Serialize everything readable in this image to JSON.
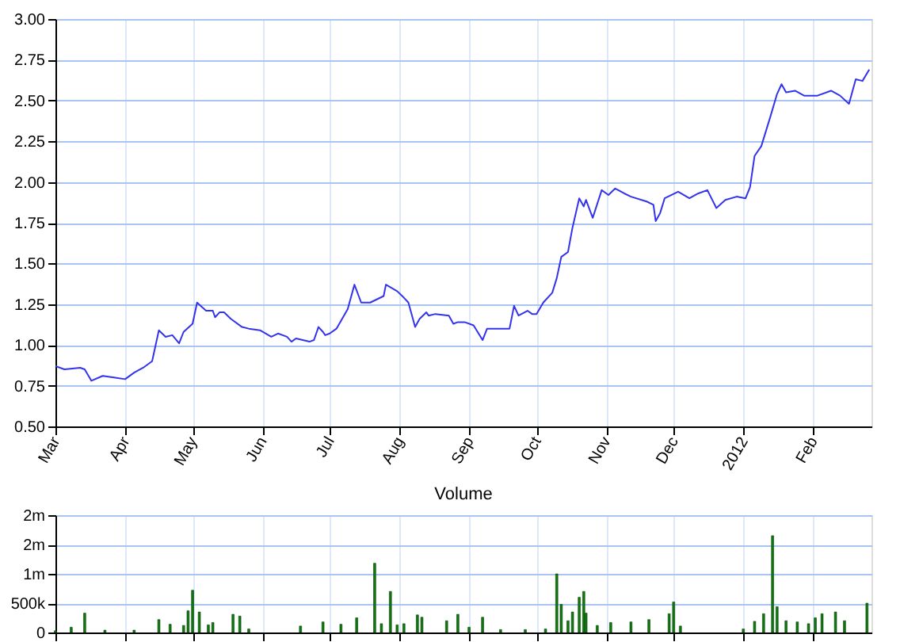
{
  "chart_data": [
    {
      "type": "line",
      "xlim": [
        "2011-03-01",
        "2012-02-27"
      ],
      "ylim": [
        0.5,
        3.0
      ],
      "yticks": [
        {
          "value": 0.5,
          "label": "0.50"
        },
        {
          "value": 0.75,
          "label": "0.75"
        },
        {
          "value": 1.0,
          "label": "1.00"
        },
        {
          "value": 1.25,
          "label": "1.25"
        },
        {
          "value": 1.5,
          "label": "1.50"
        },
        {
          "value": 1.75,
          "label": "1.75"
        },
        {
          "value": 2.0,
          "label": "2.00"
        },
        {
          "value": 2.25,
          "label": "2.25"
        },
        {
          "value": 2.5,
          "label": "2.50"
        },
        {
          "value": 2.75,
          "label": "2.75"
        },
        {
          "value": 3.0,
          "label": "3.00"
        }
      ],
      "xticks": [
        {
          "value": "2011-03-01",
          "label": "Mar"
        },
        {
          "value": "2011-04-01",
          "label": "Apr"
        },
        {
          "value": "2011-05-01",
          "label": "May"
        },
        {
          "value": "2011-06-01",
          "label": "Jun"
        },
        {
          "value": "2011-07-01",
          "label": "Jul"
        },
        {
          "value": "2011-08-01",
          "label": "Aug"
        },
        {
          "value": "2011-09-01",
          "label": "Sep"
        },
        {
          "value": "2011-10-01",
          "label": "Oct"
        },
        {
          "value": "2011-11-01",
          "label": "Nov"
        },
        {
          "value": "2011-12-01",
          "label": "Dec"
        },
        {
          "value": "2012-01-01",
          "label": "2012"
        },
        {
          "value": "2012-02-01",
          "label": "Feb"
        }
      ],
      "grid": true,
      "series": [
        {
          "color": "#3333ee",
          "x": [
            "2011-03-01",
            "2011-03-05",
            "2011-03-12",
            "2011-03-14",
            "2011-03-17",
            "2011-03-22",
            "2011-03-27",
            "2011-04-01",
            "2011-04-05",
            "2011-04-09",
            "2011-04-13",
            "2011-04-16",
            "2011-04-19",
            "2011-04-22",
            "2011-04-25",
            "2011-04-27",
            "2011-05-01",
            "2011-05-03",
            "2011-05-07",
            "2011-05-10",
            "2011-05-11",
            "2011-05-13",
            "2011-05-15",
            "2011-05-18",
            "2011-05-23",
            "2011-05-26",
            "2011-05-31",
            "2011-06-05",
            "2011-06-08",
            "2011-06-12",
            "2011-06-14",
            "2011-06-16",
            "2011-06-19",
            "2011-06-22",
            "2011-06-24",
            "2011-06-26",
            "2011-06-28",
            "2011-06-29",
            "2011-07-01",
            "2011-07-04",
            "2011-07-09",
            "2011-07-12",
            "2011-07-15",
            "2011-07-19",
            "2011-07-25",
            "2011-07-26",
            "2011-07-31",
            "2011-08-03",
            "2011-08-05",
            "2011-08-08",
            "2011-08-10",
            "2011-08-13",
            "2011-08-14",
            "2011-08-17",
            "2011-08-23",
            "2011-08-25",
            "2011-08-27",
            "2011-08-30",
            "2011-09-03",
            "2011-09-07",
            "2011-09-09",
            "2011-09-12",
            "2011-09-19",
            "2011-09-21",
            "2011-09-23",
            "2011-09-27",
            "2011-09-29",
            "2011-10-01",
            "2011-10-04",
            "2011-10-08",
            "2011-10-10",
            "2011-10-12",
            "2011-10-15",
            "2011-10-17",
            "2011-10-20",
            "2011-10-22",
            "2011-10-23",
            "2011-10-26",
            "2011-10-30",
            "2011-11-02",
            "2011-11-05",
            "2011-11-09",
            "2011-11-12",
            "2011-11-19",
            "2011-11-22",
            "2011-11-23",
            "2011-11-25",
            "2011-11-27",
            "2011-12-03",
            "2011-12-08",
            "2011-12-12",
            "2011-12-16",
            "2011-12-20",
            "2011-12-24",
            "2011-12-29",
            "2012-01-02",
            "2012-01-04",
            "2012-01-06",
            "2012-01-09",
            "2012-01-13",
            "2012-01-16",
            "2012-01-18",
            "2012-01-20",
            "2012-01-24",
            "2012-01-28",
            "2012-01-31",
            "2012-02-03",
            "2012-02-09",
            "2012-02-13",
            "2012-02-17",
            "2012-02-20",
            "2012-02-23",
            "2012-02-26"
          ],
          "values": [
            0.87,
            0.85,
            0.86,
            0.85,
            0.78,
            0.81,
            0.8,
            0.79,
            0.83,
            0.86,
            0.9,
            1.09,
            1.05,
            1.06,
            1.01,
            1.08,
            1.13,
            1.26,
            1.21,
            1.21,
            1.17,
            1.2,
            1.2,
            1.16,
            1.11,
            1.1,
            1.09,
            1.05,
            1.07,
            1.05,
            1.02,
            1.04,
            1.03,
            1.02,
            1.03,
            1.11,
            1.08,
            1.06,
            1.07,
            1.1,
            1.22,
            1.37,
            1.26,
            1.26,
            1.3,
            1.37,
            1.33,
            1.29,
            1.26,
            1.11,
            1.16,
            1.2,
            1.18,
            1.19,
            1.18,
            1.13,
            1.14,
            1.14,
            1.12,
            1.03,
            1.1,
            1.1,
            1.1,
            1.24,
            1.18,
            1.21,
            1.19,
            1.19,
            1.26,
            1.32,
            1.41,
            1.54,
            1.57,
            1.72,
            1.9,
            1.85,
            1.89,
            1.78,
            1.95,
            1.92,
            1.96,
            1.93,
            1.91,
            1.88,
            1.86,
            1.76,
            1.81,
            1.9,
            1.94,
            1.9,
            1.93,
            1.95,
            1.84,
            1.89,
            1.91,
            1.9,
            1.97,
            2.16,
            2.22,
            2.4,
            2.54,
            2.6,
            2.55,
            2.56,
            2.53,
            2.53,
            2.53,
            2.56,
            2.53,
            2.48,
            2.63,
            2.62,
            2.69
          ]
        }
      ]
    },
    {
      "type": "bar",
      "title": "Volume",
      "xlim": [
        "2011-03-01",
        "2012-02-27"
      ],
      "ylim": [
        0,
        2000000
      ],
      "yticks": [
        {
          "value": 0,
          "label": "0"
        },
        {
          "value": 500000,
          "label": "500k"
        },
        {
          "value": 1000000,
          "label": "1m"
        },
        {
          "value": 1500000,
          "label": "2m"
        },
        {
          "value": 2000000,
          "label": "2m"
        }
      ],
      "xticks": [
        {
          "value": "2011-03-01",
          "label": null
        },
        {
          "value": "2011-04-01",
          "label": null
        },
        {
          "value": "2011-05-01",
          "label": null
        },
        {
          "value": "2011-06-01",
          "label": null
        },
        {
          "value": "2011-07-01",
          "label": null
        },
        {
          "value": "2011-08-01",
          "label": null
        },
        {
          "value": "2011-09-01",
          "label": null
        },
        {
          "value": "2011-10-01",
          "label": null
        },
        {
          "value": "2011-11-01",
          "label": null
        },
        {
          "value": "2011-12-01",
          "label": null
        },
        {
          "value": "2012-01-01",
          "label": null
        },
        {
          "value": "2012-02-01",
          "label": null
        }
      ],
      "tick_labels": "y",
      "grid": true,
      "series": [
        {
          "color": "#117711",
          "x": [
            "2011-03-01",
            "2011-03-08",
            "2011-03-14",
            "2011-03-23",
            "2011-04-05",
            "2011-04-16",
            "2011-04-21",
            "2011-04-27",
            "2011-04-29",
            "2011-05-01",
            "2011-05-04",
            "2011-05-08",
            "2011-05-10",
            "2011-05-19",
            "2011-05-22",
            "2011-05-26",
            "2011-06-18",
            "2011-06-28",
            "2011-07-06",
            "2011-07-13",
            "2011-07-21",
            "2011-07-24",
            "2011-07-28",
            "2011-07-31",
            "2011-08-03",
            "2011-08-09",
            "2011-08-11",
            "2011-08-22",
            "2011-08-27",
            "2011-09-01",
            "2011-09-07",
            "2011-09-15",
            "2011-09-26",
            "2011-10-05",
            "2011-10-10",
            "2011-10-12",
            "2011-10-15",
            "2011-10-17",
            "2011-10-20",
            "2011-10-22",
            "2011-10-23",
            "2011-10-28",
            "2011-11-03",
            "2011-11-12",
            "2011-11-20",
            "2011-11-29",
            "2011-12-01",
            "2011-12-04",
            "2012-01-01",
            "2012-01-06",
            "2012-01-10",
            "2012-01-14",
            "2012-01-16",
            "2012-01-20",
            "2012-01-25",
            "2012-01-30",
            "2012-02-02",
            "2012-02-05",
            "2012-02-11",
            "2012-02-15",
            "2012-02-25"
          ],
          "values": [
            30000,
            90000,
            330000,
            40000,
            40000,
            220000,
            140000,
            120000,
            370000,
            720000,
            350000,
            130000,
            170000,
            310000,
            280000,
            60000,
            110000,
            180000,
            140000,
            250000,
            1180000,
            150000,
            700000,
            130000,
            150000,
            300000,
            260000,
            200000,
            310000,
            90000,
            260000,
            50000,
            50000,
            60000,
            1000000,
            480000,
            200000,
            350000,
            600000,
            700000,
            330000,
            120000,
            170000,
            180000,
            220000,
            320000,
            520000,
            110000,
            60000,
            190000,
            320000,
            1650000,
            440000,
            200000,
            180000,
            150000,
            250000,
            320000,
            350000,
            200000,
            500000
          ]
        }
      ]
    }
  ]
}
